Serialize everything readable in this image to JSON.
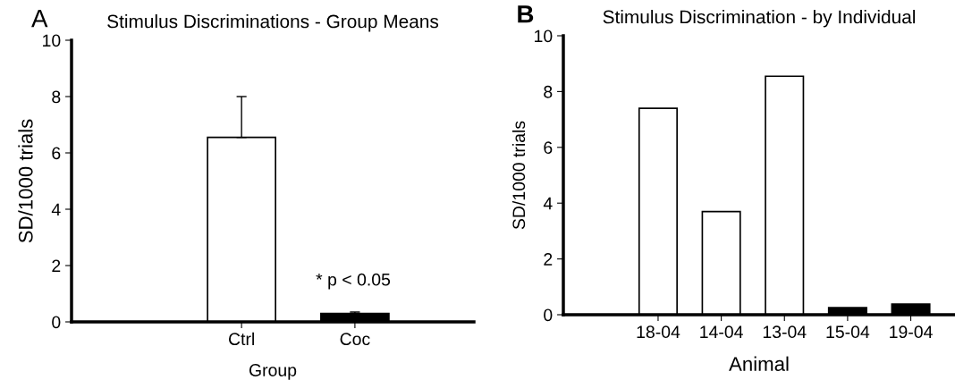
{
  "chart_data": [
    {
      "type": "bar",
      "title": "Stimulus Discriminations - Group Means",
      "xlabel": "Group",
      "ylabel": "SD/1000 trials",
      "categories": [
        "Ctrl",
        "Coc"
      ],
      "values": [
        6.55,
        0.3
      ],
      "colors": [
        "#ffffff",
        "#000000"
      ],
      "errors": [
        1.45,
        0.05
      ],
      "ylim": [
        0,
        10
      ],
      "yticks": [
        0,
        2,
        4,
        6,
        8,
        10
      ],
      "annotations": [
        "A",
        "* p < 0.05"
      ]
    },
    {
      "type": "bar",
      "title": "Stimulus Discrimination - by Individual",
      "xlabel": "Animal",
      "ylabel": "SD/1000 trials",
      "categories": [
        "18-04",
        "14-04",
        "13-04",
        "15-04",
        "19-04"
      ],
      "values": [
        7.4,
        3.7,
        8.55,
        0.25,
        0.38
      ],
      "colors": [
        "#ffffff",
        "#ffffff",
        "#ffffff",
        "#000000",
        "#000000"
      ],
      "ylim": [
        0,
        10
      ],
      "yticks": [
        0,
        2,
        4,
        6,
        8,
        10
      ],
      "annotations": [
        "B"
      ]
    }
  ]
}
